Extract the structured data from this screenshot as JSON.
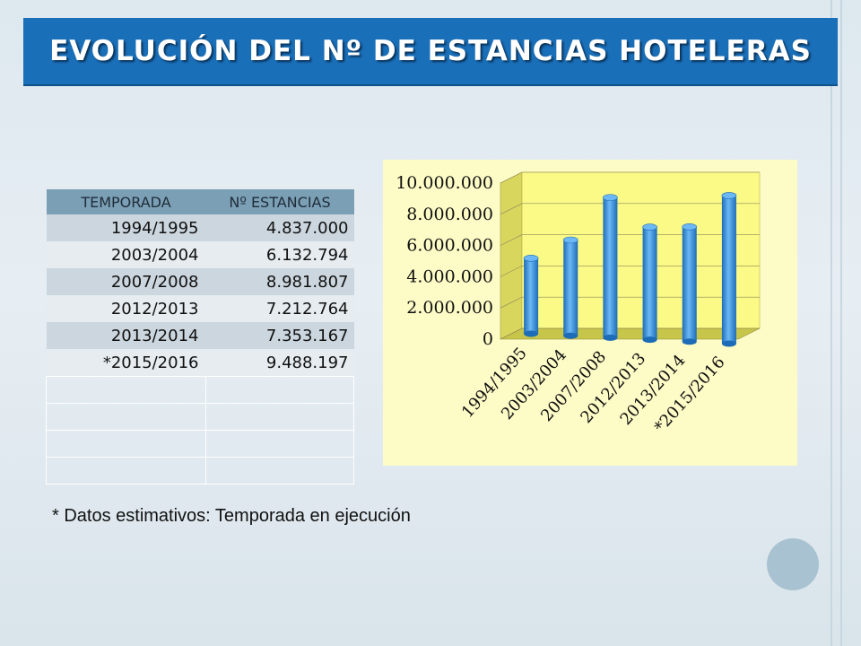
{
  "title": "EVOLUCIÓN DEL Nº DE ESTANCIAS HOTELERAS",
  "table": {
    "headers": [
      "TEMPORADA",
      "Nº ESTANCIAS"
    ],
    "rows": [
      [
        "1994/1995",
        "4.837.000"
      ],
      [
        "2003/2004",
        "6.132.794"
      ],
      [
        "2007/2008",
        "8.981.807"
      ],
      [
        "2012/2013",
        "7.212.764"
      ],
      [
        "2013/2014",
        "7.353.167"
      ],
      [
        "*2015/2016",
        "9.488.197"
      ]
    ]
  },
  "footnote": "* Datos estimativos: Temporada en ejecución",
  "chart_data": {
    "type": "bar",
    "categories": [
      "1994/1995",
      "2003/2004",
      "2007/2008",
      "2012/2013",
      "2013/2014",
      "*2015/2016"
    ],
    "values": [
      4837000,
      6132794,
      8981807,
      7212764,
      7353167,
      9488197
    ],
    "ylim": [
      0,
      10000000
    ],
    "yticks": [
      "0",
      "2.000.000",
      "4.000.000",
      "6.000.000",
      "8.000.000",
      "10.000.000"
    ],
    "grid": true,
    "legend": "none",
    "colors": {
      "bar": "#2f8fe0",
      "bar_dark": "#1d6cb8",
      "bar_light": "#6cb8f5",
      "wall": "#fbfa86",
      "floor": "#c8c64a"
    }
  }
}
